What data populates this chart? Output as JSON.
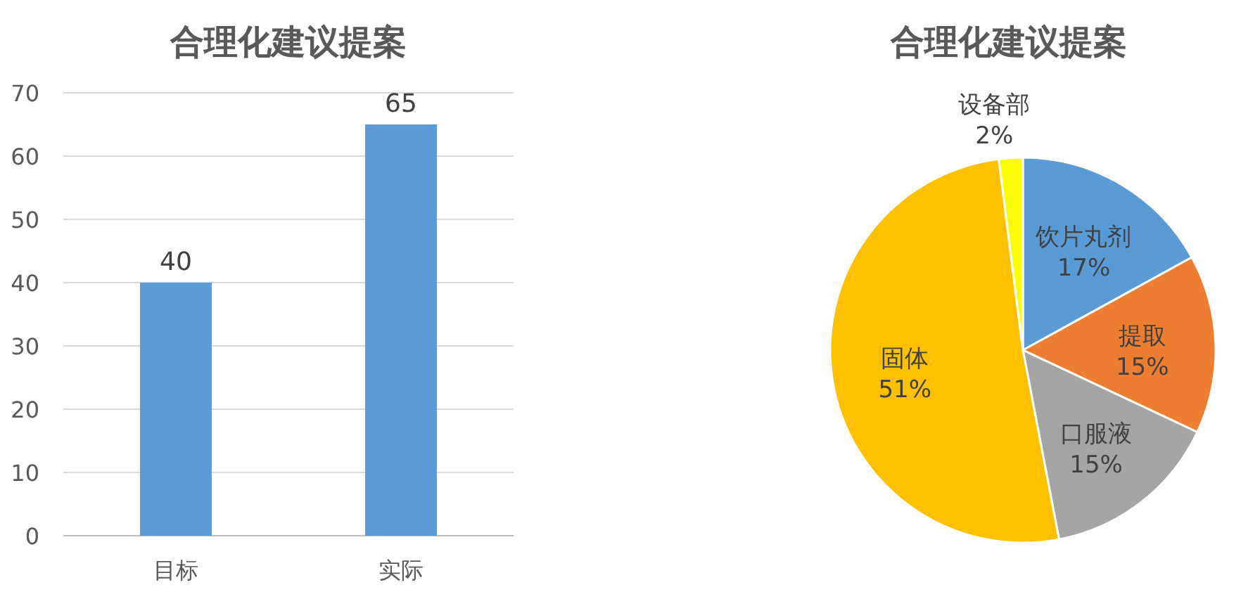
{
  "chart_data": [
    {
      "type": "bar",
      "title": "合理化建议提案",
      "categories": [
        "目标",
        "实际"
      ],
      "values": [
        40,
        65
      ],
      "color": "#5b9bd5",
      "ylim": [
        0,
        70
      ],
      "yticks": [
        0,
        10,
        20,
        30,
        40,
        50,
        60,
        70
      ],
      "grid": "y",
      "data_labels": true
    },
    {
      "type": "pie",
      "title": "合理化建议提案",
      "categories": [
        "饮片丸剂",
        "提取",
        "口服液",
        "固体",
        "设备部"
      ],
      "values": [
        17,
        15,
        15,
        51,
        2
      ],
      "colors": [
        "#5b9bd5",
        "#ed7d31",
        "#a5a5a5",
        "#ffc000",
        "#ffff00"
      ],
      "value_labels": [
        "17%",
        "15%",
        "15%",
        "51%",
        "2%"
      ]
    }
  ]
}
